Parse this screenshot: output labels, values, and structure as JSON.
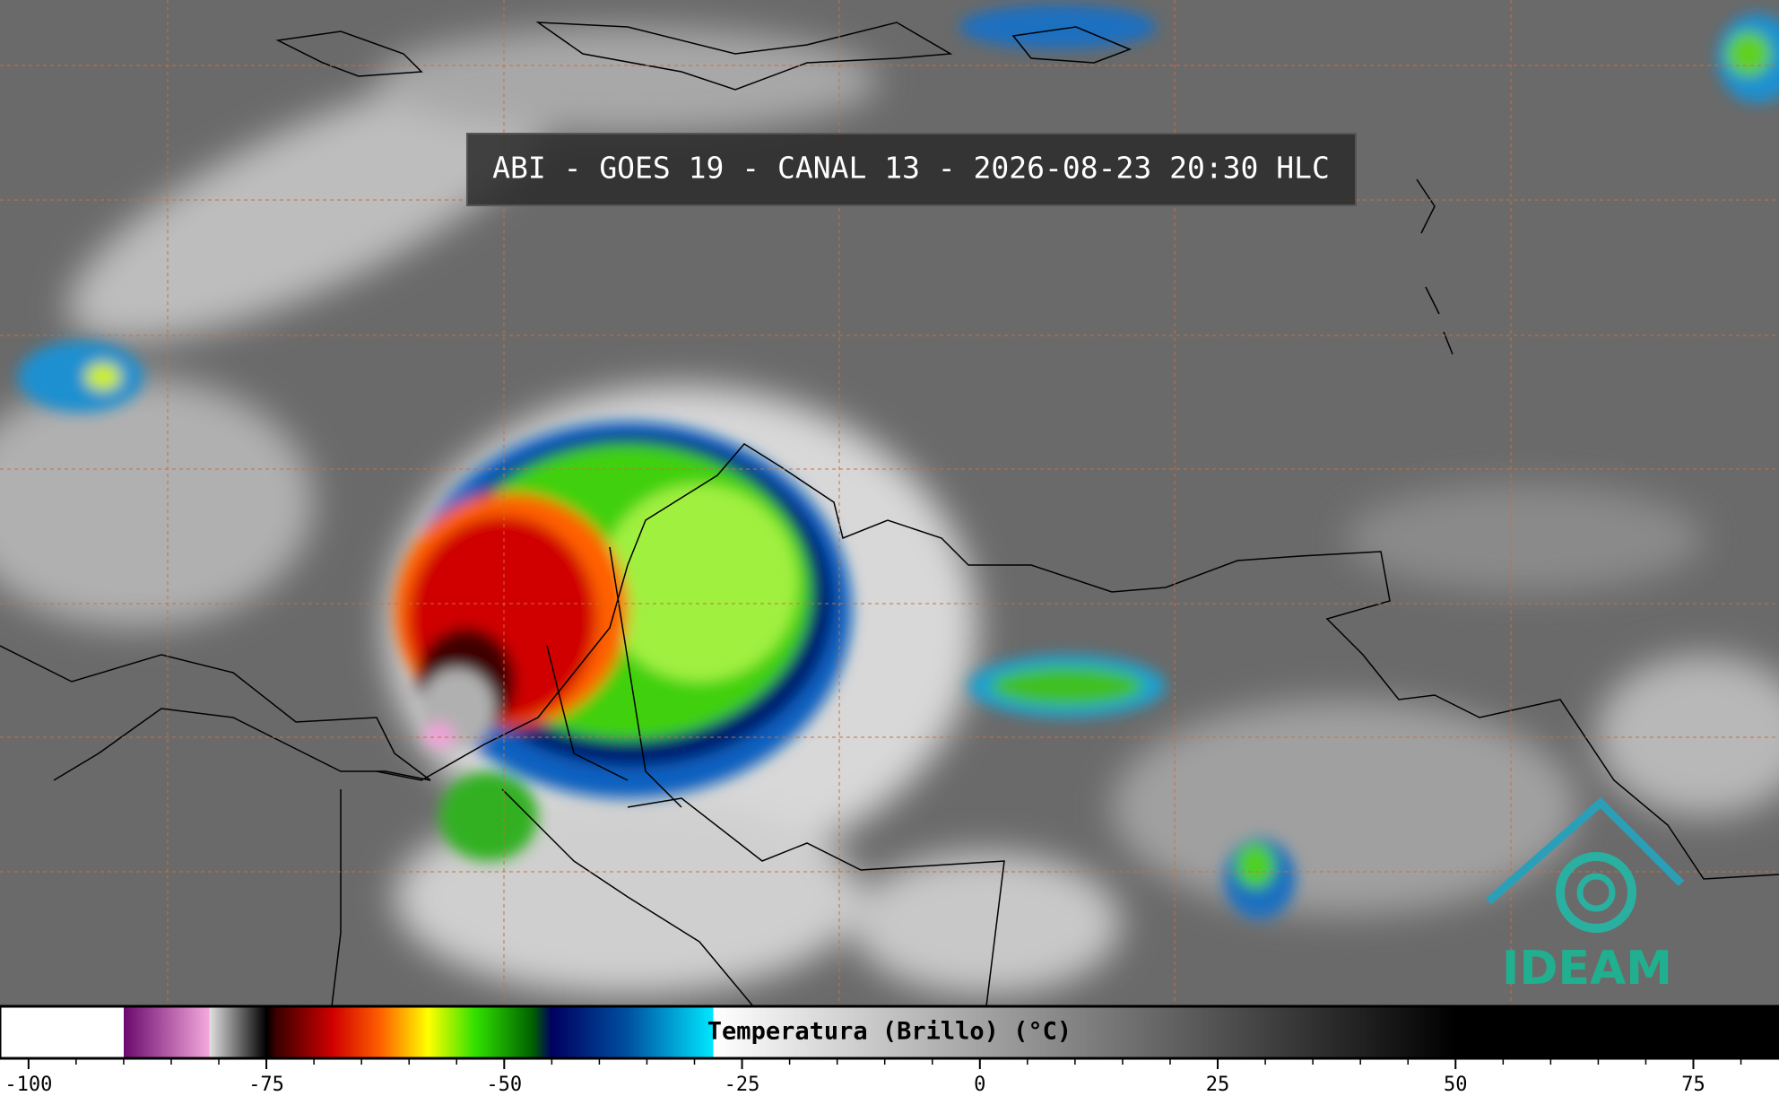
{
  "header": {
    "title": "ABI - GOES 19 - CANAL 13 - 2026-08-23 20:30 HLC"
  },
  "logo": {
    "text": "IDEAM"
  },
  "colorbar": {
    "label": "Temperatura (Brillo) (°C)",
    "range": [
      -103,
      84
    ],
    "ticks": [
      -100,
      -75,
      -50,
      -25,
      0,
      25,
      50,
      75
    ],
    "minor_ticks": [
      -95,
      -90,
      -85,
      -80,
      -70,
      -65,
      -60,
      -55,
      -45,
      -40,
      -35,
      -30,
      -20,
      -15,
      -10,
      -5,
      5,
      10,
      15,
      20,
      30,
      35,
      40,
      45,
      55,
      60,
      65,
      70,
      80
    ],
    "stops": [
      {
        "value": -103,
        "color": "#ffffff"
      },
      {
        "value": -90,
        "color": "#ffffff"
      },
      {
        "value": -90,
        "color": "#6a0a6e"
      },
      {
        "value": -81,
        "color": "#f4a8dc"
      },
      {
        "value": -81,
        "color": "#e0e0e0"
      },
      {
        "value": -75,
        "color": "#000000"
      },
      {
        "value": -74,
        "color": "#3a0000"
      },
      {
        "value": -68,
        "color": "#d00000"
      },
      {
        "value": -63,
        "color": "#ff6000"
      },
      {
        "value": -58,
        "color": "#ffff00"
      },
      {
        "value": -53,
        "color": "#30e000"
      },
      {
        "value": -47,
        "color": "#006000"
      },
      {
        "value": -45,
        "color": "#000060"
      },
      {
        "value": -37,
        "color": "#0050a0"
      },
      {
        "value": -28,
        "color": "#00e8ff"
      },
      {
        "value": -28,
        "color": "#ffffff"
      },
      {
        "value": 50,
        "color": "#000000"
      },
      {
        "value": 84,
        "color": "#000000"
      }
    ]
  }
}
